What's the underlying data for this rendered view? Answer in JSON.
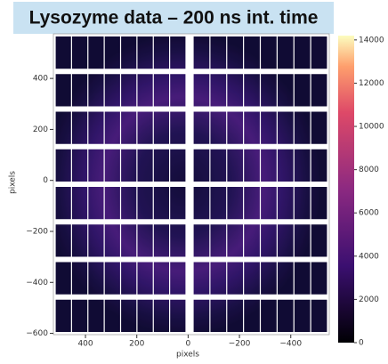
{
  "chart_data": {
    "type": "image",
    "title": "Lysozyme data – 200 ns int. time",
    "xlabel": "pixels",
    "ylabel": "pixels",
    "xlim": [
      525,
      -550
    ],
    "ylim": [
      -605,
      575
    ],
    "xticks": [
      400,
      200,
      0,
      {
        "value": -200,
        "label": "−200"
      },
      {
        "value": -400,
        "label": "−400"
      }
    ],
    "yticks": [
      400,
      200,
      0,
      {
        "value": -200,
        "label": "−200"
      },
      {
        "value": -400,
        "label": "−400"
      },
      {
        "value": -600,
        "label": "−600"
      }
    ],
    "colormap": "magma",
    "clim": [
      0,
      14200
    ],
    "cticks": [
      0,
      2000,
      4000,
      6000,
      8000,
      10000,
      12000,
      14000
    ]
  }
}
